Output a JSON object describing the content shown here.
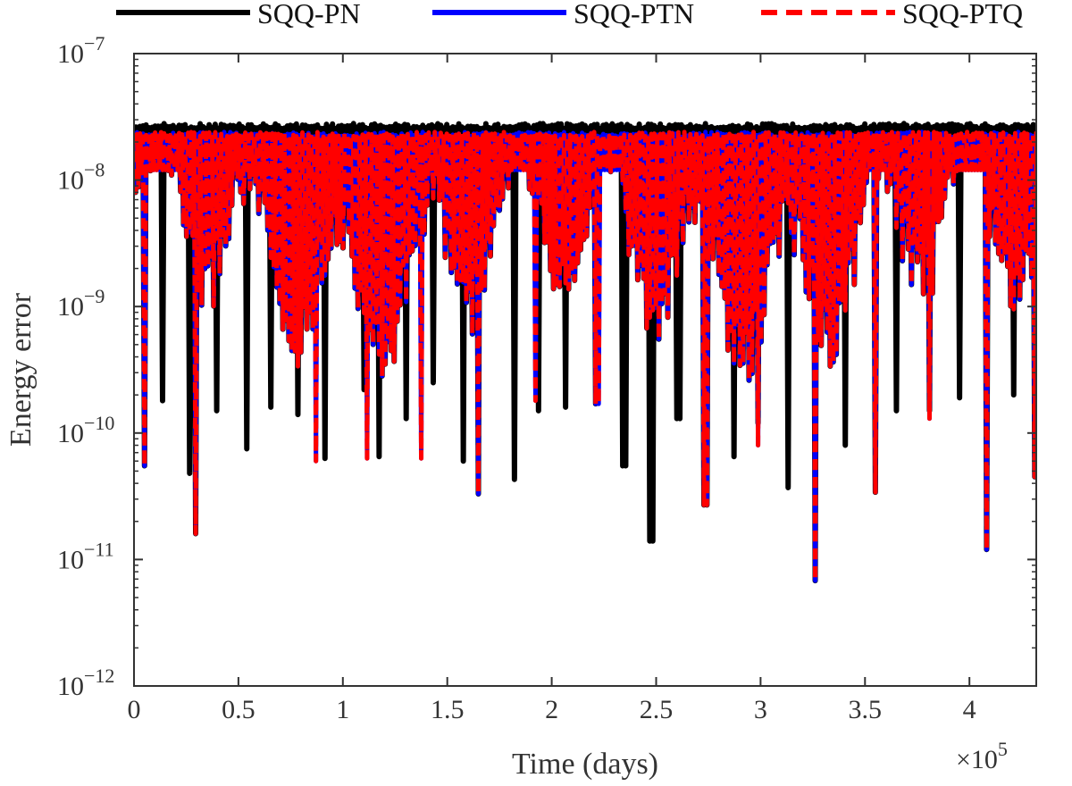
{
  "chart_data": {
    "type": "line",
    "title": "",
    "xlabel": "Time (days)",
    "ylabel": "Energy error",
    "x_scale_label": "×10",
    "x_scale_exponent": "5",
    "xlim": [
      0,
      4.32
    ],
    "x_multiplier": 100000,
    "ylim": [
      1e-12,
      1e-07
    ],
    "y_scale": "log",
    "x_ticks": [
      {
        "value": 0,
        "label": "0"
      },
      {
        "value": 0.5,
        "label": "0.5"
      },
      {
        "value": 1,
        "label": "1"
      },
      {
        "value": 1.5,
        "label": "1.5"
      },
      {
        "value": 2,
        "label": "2"
      },
      {
        "value": 2.5,
        "label": "2.5"
      },
      {
        "value": 3,
        "label": "3"
      },
      {
        "value": 3.5,
        "label": "3.5"
      },
      {
        "value": 4,
        "label": "4"
      }
    ],
    "y_ticks": [
      {
        "value": -12,
        "base": "10",
        "exp": "−12"
      },
      {
        "value": -11,
        "base": "10",
        "exp": "−11"
      },
      {
        "value": -10,
        "base": "10",
        "exp": "−10"
      },
      {
        "value": -9,
        "base": "10",
        "exp": "−9"
      },
      {
        "value": -8,
        "base": "10",
        "exp": "−8"
      },
      {
        "value": -7,
        "base": "10",
        "exp": "−7"
      }
    ],
    "legend_position": "top",
    "series": [
      {
        "name": "SQQ-PN",
        "color": "#000000",
        "style": "solid",
        "upper_envelope": 2.8e-08,
        "dips": [
          [
            0.04,
            5.5e-11
          ],
          [
            0.13,
            1.8e-10
          ],
          [
            0.26,
            4.8e-11
          ],
          [
            0.29,
            1.6e-11
          ],
          [
            0.39,
            1.5e-10
          ],
          [
            0.53,
            7.5e-11
          ],
          [
            0.65,
            1.6e-10
          ],
          [
            0.78,
            1.4e-10
          ],
          [
            0.91,
            6.3e-11
          ],
          [
            1.1,
            2.2e-10
          ],
          [
            1.17,
            6.5e-11
          ],
          [
            1.3,
            1.3e-10
          ],
          [
            1.42,
            2.5e-10
          ],
          [
            1.57,
            6e-11
          ],
          [
            1.64,
            3.3e-11
          ],
          [
            1.82,
            4.3e-11
          ],
          [
            1.93,
            1.5e-10
          ],
          [
            2.06,
            1.6e-10
          ],
          [
            2.2,
            1.7e-10
          ],
          [
            2.34,
            5.5e-11
          ],
          [
            2.47,
            1.4e-11
          ],
          [
            2.6,
            1.3e-10
          ],
          [
            2.73,
            2.7e-11
          ],
          [
            2.87,
            6.5e-11
          ],
          [
            2.98,
            1.2e-10
          ],
          [
            3.12,
            3.7e-11
          ],
          [
            3.25,
            6.8e-12
          ],
          [
            3.4,
            8e-11
          ],
          [
            3.54,
            3.4e-11
          ],
          [
            3.64,
            1.5e-10
          ],
          [
            3.8,
            1.5e-10
          ],
          [
            3.94,
            1.9e-10
          ],
          [
            4.08,
            1.2e-11
          ],
          [
            4.2,
            2e-10
          ],
          [
            4.3,
            4.5e-11
          ]
        ]
      },
      {
        "name": "SQQ-PTN",
        "color": "#0000ff",
        "style": "solid",
        "upper_envelope": 2.4e-08,
        "dips": [
          [
            0.04,
            5.5e-11
          ],
          [
            0.29,
            1.6e-11
          ],
          [
            0.86,
            6e-11
          ],
          [
            1.11,
            6.3e-11
          ],
          [
            1.37,
            6.3e-11
          ],
          [
            1.64,
            3.3e-11
          ],
          [
            1.91,
            1.8e-10
          ],
          [
            2.21,
            1.7e-10
          ],
          [
            2.73,
            2.7e-11
          ],
          [
            2.98,
            8e-11
          ],
          [
            3.25,
            6.8e-12
          ],
          [
            3.54,
            3.4e-11
          ],
          [
            3.8,
            1.3e-10
          ],
          [
            4.08,
            1.2e-11
          ],
          [
            4.3,
            4.5e-11
          ]
        ]
      },
      {
        "name": "SQQ-PTQ",
        "color": "#ff0000",
        "style": "dashed",
        "upper_envelope": 2.4e-08,
        "dips": [
          [
            0.04,
            5.5e-11
          ],
          [
            0.29,
            1.6e-11
          ],
          [
            0.86,
            6e-11
          ],
          [
            1.11,
            6.3e-11
          ],
          [
            1.37,
            6.3e-11
          ],
          [
            1.64,
            3.3e-11
          ],
          [
            1.91,
            1.8e-10
          ],
          [
            2.21,
            1.7e-10
          ],
          [
            2.73,
            2.7e-11
          ],
          [
            2.98,
            8e-11
          ],
          [
            3.25,
            6.8e-12
          ],
          [
            3.54,
            3.4e-11
          ],
          [
            3.8,
            1.3e-10
          ],
          [
            4.08,
            1.2e-11
          ],
          [
            4.3,
            4.5e-11
          ]
        ]
      }
    ]
  }
}
